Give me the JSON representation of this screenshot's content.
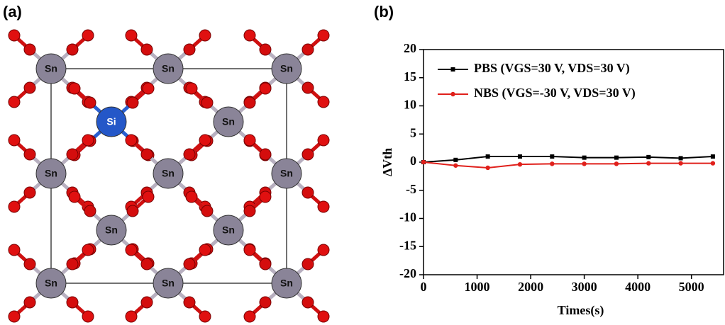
{
  "panel_labels": [
    "(a)",
    "(b)"
  ],
  "structure": {
    "atoms": [
      "Sn",
      "Sn",
      "Sn",
      "Sn",
      "Si",
      "Sn",
      "Sn",
      "Sn",
      "Sn",
      "Sn",
      "Sn",
      "Sn",
      "Sn"
    ]
  },
  "chart_data": {
    "type": "line",
    "xlabel": "Times(s)",
    "ylabel": "ΔVth",
    "x": [
      0,
      600,
      1200,
      1800,
      2400,
      3000,
      3600,
      4200,
      4800,
      5400
    ],
    "series": [
      {
        "name": "PBS (VGS=30 V, VDS=30 V)",
        "color": "#000000",
        "values": [
          0,
          0.4,
          1,
          1,
          1,
          0.8,
          0.8,
          0.9,
          0.7,
          1
        ]
      },
      {
        "name": "NBS (VGS=-30 V, VDS=30 V)",
        "color": "#e0201b",
        "values": [
          0,
          -0.6,
          -1,
          -0.4,
          -0.3,
          -0.3,
          -0.3,
          -0.2,
          -0.2,
          -0.2
        ]
      }
    ],
    "xlim": [
      0,
      5600
    ],
    "ylim": [
      -20,
      20
    ],
    "xticks": [
      0,
      1000,
      2000,
      3000,
      4000,
      5000
    ],
    "yticks": [
      -20,
      -15,
      -10,
      -5,
      0,
      5,
      10,
      15,
      20
    ]
  }
}
